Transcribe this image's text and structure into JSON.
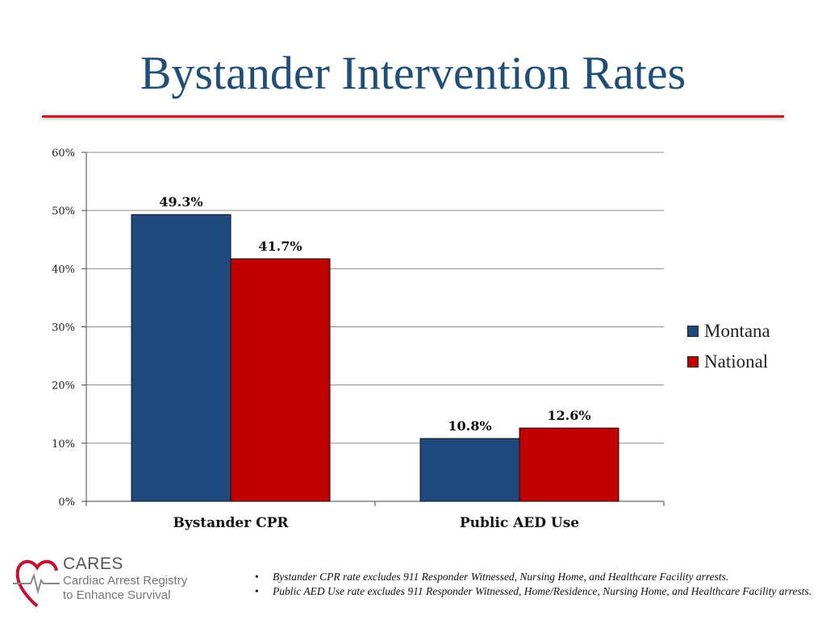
{
  "title": "Bystander Intervention Rates",
  "chart_data": {
    "type": "bar",
    "title": "Bystander Intervention Rates",
    "categories": [
      "Bystander CPR",
      "Public AED Use"
    ],
    "series": [
      {
        "name": "Montana",
        "color": "#1f497d",
        "values": [
          49.3,
          10.8
        ],
        "labels": [
          "49.3%",
          "10.8%"
        ]
      },
      {
        "name": "National",
        "color": "#c00000",
        "values": [
          41.7,
          12.6
        ],
        "labels": [
          "41.7%",
          "12.6%"
        ]
      }
    ],
    "yticks": [
      0,
      10,
      20,
      30,
      40,
      50,
      60
    ],
    "ytick_labels": [
      "0%",
      "10%",
      "20%",
      "30%",
      "40%",
      "50%",
      "60%"
    ],
    "ylim": [
      0,
      60
    ],
    "xlabel": "",
    "ylabel": "",
    "grid": true,
    "legend_position": "right"
  },
  "legend": {
    "items": [
      {
        "label": "Montana",
        "color": "#1f497d"
      },
      {
        "label": "National",
        "color": "#c00000"
      }
    ]
  },
  "logo": {
    "name": "CARES",
    "line1": "Cardiac Arrest Registry",
    "line2": "to Enhance Survival"
  },
  "notes": [
    "Bystander CPR rate excludes 911 Responder Witnessed, Nursing Home, and Healthcare Facility arrests.",
    "Public AED Use rate excludes 911 Responder Witnessed, Home/Residence, Nursing Home, and Healthcare Facility arrests."
  ]
}
